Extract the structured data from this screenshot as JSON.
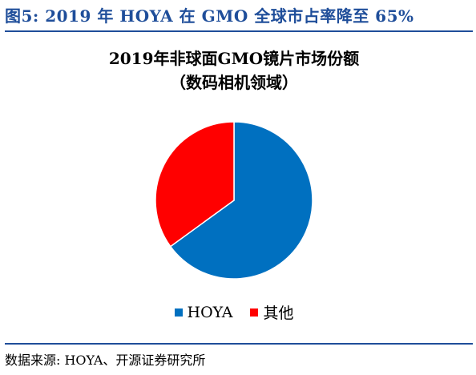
{
  "figure": {
    "caption": "图5:  2019 年 HOYA 在 GMO 全球市占率降至 65%",
    "source": "数据来源:  HOYA、开源证券研究所"
  },
  "chart_data": {
    "type": "pie",
    "title_line1": "2019年非球面GMO镜片市场份额",
    "title_line2": "（数码相机领域）",
    "categories": [
      "HOYA",
      "其他"
    ],
    "values": [
      65,
      35
    ],
    "colors": [
      "#0070C0",
      "#FF0000"
    ],
    "legend_position": "bottom"
  }
}
